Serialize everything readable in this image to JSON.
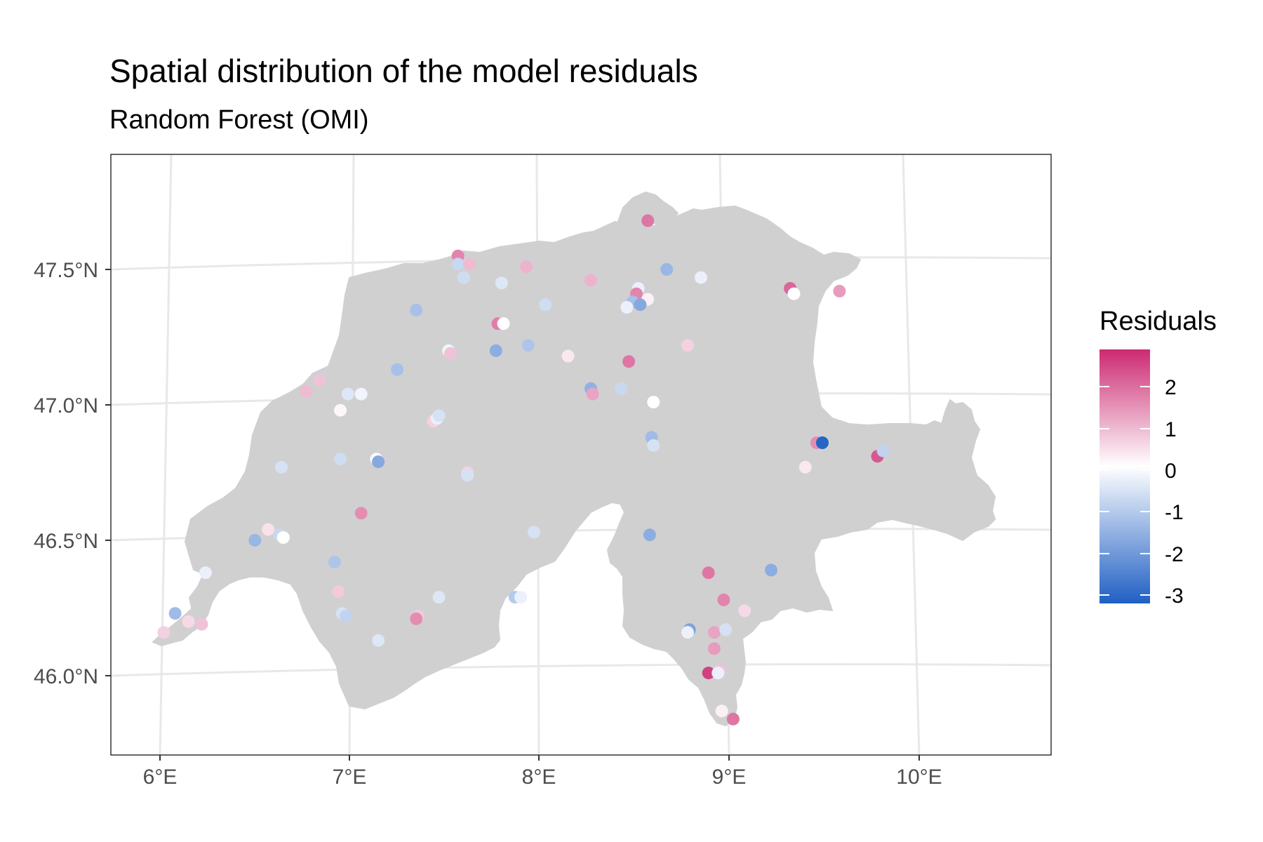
{
  "chart_data": {
    "type": "scatter",
    "title": "Spatial distribution of the model residuals",
    "subtitle": "Random Forest (OMI)",
    "x_ticks": [
      "6°E",
      "7°E",
      "8°E",
      "9°E",
      "10°E"
    ],
    "y_ticks": [
      "46.0°N",
      "46.5°N",
      "47.0°N",
      "47.5°N"
    ],
    "x_range": [
      5.75,
      10.67
    ],
    "y_range": [
      45.72,
      47.89
    ],
    "basemap": "Switzerland",
    "grid": true,
    "legend": {
      "title": "Residuals",
      "labels": [
        "2",
        "1",
        "0",
        "-1",
        "-2",
        "-3"
      ],
      "position": "right",
      "range": [
        -3.3,
        2.8
      ],
      "colors": {
        "low": "#1f5fc4",
        "mid": "#ffffff",
        "high": "#cc2a72"
      }
    },
    "points": [
      {
        "lon": 8.57,
        "lat": 47.68,
        "r": 1.8
      },
      {
        "lon": 7.57,
        "lat": 47.55,
        "r": 1.6
      },
      {
        "lon": 7.57,
        "lat": 47.52,
        "r": -0.8
      },
      {
        "lon": 7.63,
        "lat": 47.52,
        "r": 0.9
      },
      {
        "lon": 7.6,
        "lat": 47.47,
        "r": -0.7
      },
      {
        "lon": 7.8,
        "lat": 47.45,
        "r": -0.5
      },
      {
        "lon": 7.93,
        "lat": 47.51,
        "r": 1.0
      },
      {
        "lon": 8.27,
        "lat": 47.46,
        "r": 1.0
      },
      {
        "lon": 8.67,
        "lat": 47.5,
        "r": -1.5
      },
      {
        "lon": 8.85,
        "lat": 47.47,
        "r": -0.3
      },
      {
        "lon": 9.32,
        "lat": 47.43,
        "r": 2.0
      },
      {
        "lon": 9.34,
        "lat": 47.41,
        "r": 0.0
      },
      {
        "lon": 9.58,
        "lat": 47.42,
        "r": 1.3
      },
      {
        "lon": 7.35,
        "lat": 47.35,
        "r": -1.3
      },
      {
        "lon": 8.03,
        "lat": 47.37,
        "r": -0.7
      },
      {
        "lon": 8.52,
        "lat": 47.43,
        "r": -0.3
      },
      {
        "lon": 8.51,
        "lat": 47.41,
        "r": 1.6
      },
      {
        "lon": 8.57,
        "lat": 47.39,
        "r": 0.2
      },
      {
        "lon": 8.49,
        "lat": 47.38,
        "r": -1.3
      },
      {
        "lon": 8.53,
        "lat": 47.37,
        "r": -1.8
      },
      {
        "lon": 8.46,
        "lat": 47.36,
        "r": -0.3
      },
      {
        "lon": 7.78,
        "lat": 47.3,
        "r": 1.7
      },
      {
        "lon": 7.81,
        "lat": 47.3,
        "r": 0.0
      },
      {
        "lon": 7.52,
        "lat": 47.2,
        "r": -0.2
      },
      {
        "lon": 7.53,
        "lat": 47.19,
        "r": 0.8
      },
      {
        "lon": 7.77,
        "lat": 47.2,
        "r": -1.7
      },
      {
        "lon": 7.94,
        "lat": 47.22,
        "r": -1.2
      },
      {
        "lon": 8.15,
        "lat": 47.18,
        "r": 0.3
      },
      {
        "lon": 8.47,
        "lat": 47.16,
        "r": 1.8
      },
      {
        "lon": 8.78,
        "lat": 47.22,
        "r": 0.6
      },
      {
        "lon": 7.25,
        "lat": 47.13,
        "r": -1.3
      },
      {
        "lon": 6.84,
        "lat": 47.09,
        "r": 0.8
      },
      {
        "lon": 6.77,
        "lat": 47.05,
        "r": 0.9
      },
      {
        "lon": 6.99,
        "lat": 47.04,
        "r": -0.5
      },
      {
        "lon": 7.06,
        "lat": 47.04,
        "r": -0.2
      },
      {
        "lon": 8.27,
        "lat": 47.06,
        "r": -1.6
      },
      {
        "lon": 8.28,
        "lat": 47.04,
        "r": 1.2
      },
      {
        "lon": 8.43,
        "lat": 47.06,
        "r": -0.8
      },
      {
        "lon": 8.6,
        "lat": 47.01,
        "r": 0.0
      },
      {
        "lon": 6.95,
        "lat": 46.98,
        "r": 0.1
      },
      {
        "lon": 7.44,
        "lat": 46.94,
        "r": 0.6
      },
      {
        "lon": 7.46,
        "lat": 46.95,
        "r": -0.3
      },
      {
        "lon": 7.47,
        "lat": 46.96,
        "r": -0.6
      },
      {
        "lon": 8.59,
        "lat": 46.88,
        "r": -1.4
      },
      {
        "lon": 8.6,
        "lat": 46.85,
        "r": -0.6
      },
      {
        "lon": 9.46,
        "lat": 46.86,
        "r": 1.5
      },
      {
        "lon": 9.49,
        "lat": 46.86,
        "r": -3.2
      },
      {
        "lon": 9.78,
        "lat": 46.81,
        "r": 2.2
      },
      {
        "lon": 9.81,
        "lat": 46.83,
        "r": -0.9
      },
      {
        "lon": 9.4,
        "lat": 46.77,
        "r": 0.3
      },
      {
        "lon": 7.14,
        "lat": 46.8,
        "r": -0.1
      },
      {
        "lon": 7.15,
        "lat": 46.79,
        "r": -1.8
      },
      {
        "lon": 6.95,
        "lat": 46.8,
        "r": -0.7
      },
      {
        "lon": 6.64,
        "lat": 46.77,
        "r": -0.6
      },
      {
        "lon": 7.62,
        "lat": 46.75,
        "r": 0.6
      },
      {
        "lon": 7.62,
        "lat": 46.74,
        "r": -0.6
      },
      {
        "lon": 7.06,
        "lat": 46.6,
        "r": 1.5
      },
      {
        "lon": 7.97,
        "lat": 46.53,
        "r": -0.6
      },
      {
        "lon": 8.58,
        "lat": 46.52,
        "r": -1.7
      },
      {
        "lon": 6.57,
        "lat": 46.54,
        "r": 0.4
      },
      {
        "lon": 6.5,
        "lat": 46.5,
        "r": -1.5
      },
      {
        "lon": 6.63,
        "lat": 46.52,
        "r": -0.8
      },
      {
        "lon": 6.65,
        "lat": 46.51,
        "r": 0.0
      },
      {
        "lon": 6.92,
        "lat": 46.42,
        "r": -1.2
      },
      {
        "lon": 6.24,
        "lat": 46.38,
        "r": -0.3
      },
      {
        "lon": 8.89,
        "lat": 46.38,
        "r": 1.8
      },
      {
        "lon": 9.22,
        "lat": 46.39,
        "r": -1.7
      },
      {
        "lon": 6.94,
        "lat": 46.31,
        "r": 0.7
      },
      {
        "lon": 7.47,
        "lat": 46.29,
        "r": -0.5
      },
      {
        "lon": 7.87,
        "lat": 46.29,
        "r": -1.1
      },
      {
        "lon": 7.9,
        "lat": 46.29,
        "r": -0.3
      },
      {
        "lon": 8.97,
        "lat": 46.28,
        "r": 1.6
      },
      {
        "lon": 9.08,
        "lat": 46.24,
        "r": 0.5
      },
      {
        "lon": 6.08,
        "lat": 46.23,
        "r": -1.4
      },
      {
        "lon": 6.96,
        "lat": 46.23,
        "r": -0.6
      },
      {
        "lon": 6.98,
        "lat": 46.22,
        "r": -0.9
      },
      {
        "lon": 7.36,
        "lat": 46.22,
        "r": 0.7
      },
      {
        "lon": 7.35,
        "lat": 46.21,
        "r": 1.5
      },
      {
        "lon": 6.15,
        "lat": 46.2,
        "r": 0.5
      },
      {
        "lon": 6.22,
        "lat": 46.19,
        "r": 0.8
      },
      {
        "lon": 6.02,
        "lat": 46.16,
        "r": 0.6
      },
      {
        "lon": 8.79,
        "lat": 46.17,
        "r": -1.9
      },
      {
        "lon": 8.78,
        "lat": 46.16,
        "r": -0.3
      },
      {
        "lon": 8.92,
        "lat": 46.16,
        "r": 1.2
      },
      {
        "lon": 8.98,
        "lat": 46.17,
        "r": -0.6
      },
      {
        "lon": 7.15,
        "lat": 46.13,
        "r": -0.5
      },
      {
        "lon": 8.92,
        "lat": 46.1,
        "r": 1.3
      },
      {
        "lon": 8.89,
        "lat": 46.01,
        "r": 2.5
      },
      {
        "lon": 8.95,
        "lat": 46.02,
        "r": 0.8
      },
      {
        "lon": 8.94,
        "lat": 46.01,
        "r": -0.3
      },
      {
        "lon": 8.96,
        "lat": 45.87,
        "r": 0.2
      },
      {
        "lon": 9.02,
        "lat": 45.84,
        "r": 1.8
      }
    ]
  }
}
